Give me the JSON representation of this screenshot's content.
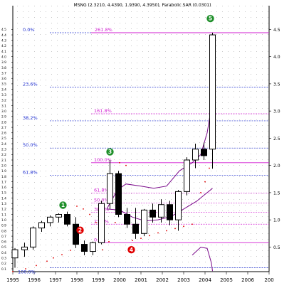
{
  "chart_data": {
    "type": "candlestick",
    "title": "MSNG (2.3210, 4.4390, 1.9390, 4.3950), Parabolic SAR (0.0301)",
    "price_ticks": [
      "0.1",
      "0.2",
      "0.3",
      "0.4",
      "0.5",
      "0.6",
      "0.7",
      "0.8",
      "0.9",
      "1.0",
      "1.1",
      "1.2",
      "1.3",
      "1.4",
      "1.5",
      "1.6",
      "1.7",
      "1.8",
      "1.9",
      "2.0",
      "2.1",
      "2.2",
      "2.3",
      "2.4",
      "2.5",
      "2.6",
      "2.7",
      "2.8",
      "2.9",
      "3.0",
      "3.1",
      "3.2",
      "3.3",
      "3.4",
      "3.5",
      "3.6",
      "3.7",
      "3.8",
      "3.9",
      "4.0",
      "4.1",
      "4.2",
      "4.3",
      "4.4",
      "4.5"
    ],
    "y_ticks_right": [
      "0.5",
      "1.0",
      "1.5",
      "2.0",
      "2.5",
      "3.0",
      "3.5",
      "4.0",
      "4.5"
    ],
    "x_ticks": [
      "1995",
      "1996",
      "1997",
      "1998",
      "1999",
      "2000",
      "2001",
      "2002",
      "2003",
      "2004",
      "2005",
      "2006",
      "200"
    ],
    "ylim": [
      0.1,
      4.6
    ],
    "candles": [
      {
        "x": 1995.1,
        "o": 0.3,
        "h": 0.48,
        "l": 0.12,
        "c": 0.45
      },
      {
        "x": 1995.55,
        "o": 0.45,
        "h": 0.58,
        "l": 0.32,
        "c": 0.5
      },
      {
        "x": 1995.95,
        "o": 0.5,
        "h": 0.88,
        "l": 0.45,
        "c": 0.85
      },
      {
        "x": 1996.35,
        "o": 0.85,
        "h": 0.98,
        "l": 0.78,
        "c": 0.95
      },
      {
        "x": 1996.75,
        "o": 0.95,
        "h": 1.08,
        "l": 0.88,
        "c": 1.05
      },
      {
        "x": 1997.15,
        "o": 1.05,
        "h": 1.12,
        "l": 0.95,
        "c": 1.1
      },
      {
        "x": 1997.55,
        "o": 1.1,
        "h": 1.15,
        "l": 0.88,
        "c": 0.92
      },
      {
        "x": 1997.95,
        "o": 0.92,
        "h": 1.05,
        "l": 0.48,
        "c": 0.55
      },
      {
        "x": 1998.35,
        "o": 0.55,
        "h": 0.62,
        "l": 0.35,
        "c": 0.42
      },
      {
        "x": 1998.75,
        "o": 0.42,
        "h": 0.6,
        "l": 0.35,
        "c": 0.58
      },
      {
        "x": 1999.15,
        "o": 0.58,
        "h": 1.35,
        "l": 0.55,
        "c": 1.3
      },
      {
        "x": 1999.55,
        "o": 1.3,
        "h": 2.1,
        "l": 1.2,
        "c": 1.85
      },
      {
        "x": 1999.95,
        "o": 1.85,
        "h": 1.9,
        "l": 1.05,
        "c": 1.1
      },
      {
        "x": 2000.35,
        "o": 1.1,
        "h": 1.22,
        "l": 0.85,
        "c": 0.92
      },
      {
        "x": 2000.75,
        "o": 0.92,
        "h": 1.22,
        "l": 0.65,
        "c": 0.75
      },
      {
        "x": 2001.15,
        "o": 0.75,
        "h": 1.2,
        "l": 0.7,
        "c": 1.18
      },
      {
        "x": 2001.55,
        "o": 1.18,
        "h": 1.3,
        "l": 0.95,
        "c": 1.05
      },
      {
        "x": 2001.95,
        "o": 1.05,
        "h": 1.38,
        "l": 0.95,
        "c": 1.28
      },
      {
        "x": 2002.35,
        "o": 1.28,
        "h": 1.35,
        "l": 0.9,
        "c": 1.0
      },
      {
        "x": 2002.75,
        "o": 1.0,
        "h": 1.55,
        "l": 0.8,
        "c": 1.52
      },
      {
        "x": 2003.15,
        "o": 1.52,
        "h": 2.15,
        "l": 1.45,
        "c": 2.1
      },
      {
        "x": 2003.55,
        "o": 2.1,
        "h": 2.4,
        "l": 1.95,
        "c": 2.3
      },
      {
        "x": 2003.95,
        "o": 2.3,
        "h": 2.42,
        "l": 2.1,
        "c": 2.18
      },
      {
        "x": 2004.35,
        "o": 2.3,
        "h": 4.44,
        "l": 1.94,
        "c": 4.4
      }
    ],
    "fibonacci_left": [
      {
        "label": "0.0%",
        "value": 4.44
      },
      {
        "label": "23.6%",
        "value": 3.44
      },
      {
        "label": "38.2%",
        "value": 2.82
      },
      {
        "label": "50.0%",
        "value": 2.32
      },
      {
        "label": "61.8%",
        "value": 1.82
      },
      {
        "label": "100.0%",
        "value": 0.12
      }
    ],
    "fibonacci_right": [
      {
        "label": "261.8%",
        "value": 4.44
      },
      {
        "label": "161.8%",
        "value": 2.95
      },
      {
        "label": "100.0%",
        "value": 2.05
      },
      {
        "label": "61.8%",
        "value": 1.49
      },
      {
        "label": "50.0%",
        "value": 1.31
      },
      {
        "label": "38.2%",
        "value": 1.14
      },
      {
        "label": "23.6%",
        "value": 0.92
      },
      {
        "label": "0.0%",
        "value": 0.58
      }
    ],
    "wave_labels": [
      {
        "label": "1",
        "x": 1997.35,
        "y": 1.27,
        "color": "#1f8f2a"
      },
      {
        "label": "2",
        "x": 1998.15,
        "y": 0.81,
        "color": "#e00000"
      },
      {
        "label": "3",
        "x": 1999.55,
        "y": 2.25,
        "color": "#1f8f2a"
      },
      {
        "label": "4",
        "x": 2000.55,
        "y": 0.45,
        "color": "#e00000"
      },
      {
        "label": "5",
        "x": 2004.25,
        "y": 4.7,
        "color": "#1f8f2a"
      }
    ],
    "parabolic_sar": [
      {
        "x": 1995.0,
        "y": 0.05
      },
      {
        "x": 1995.6,
        "y": 0.1
      },
      {
        "x": 1996.1,
        "y": 0.16
      },
      {
        "x": 1996.6,
        "y": 0.24
      },
      {
        "x": 1996.9,
        "y": 0.3
      },
      {
        "x": 1997.3,
        "y": 0.36
      },
      {
        "x": 1997.7,
        "y": 0.44
      },
      {
        "x": 1998.0,
        "y": 1.25
      },
      {
        "x": 1998.3,
        "y": 1.2
      },
      {
        "x": 1998.6,
        "y": 1.1
      },
      {
        "x": 1998.9,
        "y": 0.95
      },
      {
        "x": 1999.2,
        "y": 0.45
      },
      {
        "x": 1999.5,
        "y": 0.6
      },
      {
        "x": 1999.8,
        "y": 0.95
      },
      {
        "x": 2000.0,
        "y": 2.05
      },
      {
        "x": 2000.3,
        "y": 2.0
      },
      {
        "x": 2000.6,
        "y": 0.62
      },
      {
        "x": 2001.0,
        "y": 0.66
      },
      {
        "x": 2001.4,
        "y": 0.71
      },
      {
        "x": 2001.8,
        "y": 0.76
      },
      {
        "x": 2002.2,
        "y": 0.8
      },
      {
        "x": 2002.6,
        "y": 0.84
      },
      {
        "x": 2003.0,
        "y": 0.88
      },
      {
        "x": 2003.4,
        "y": 0.92
      },
      {
        "x": 2003.8,
        "y": 1.5
      },
      {
        "x": 2004.0,
        "y": 1.7
      },
      {
        "x": 2004.2,
        "y": 1.95
      }
    ],
    "channel_upper": [
      {
        "x": 1999.4,
        "y": 1.2
      },
      {
        "x": 1999.9,
        "y": 1.55
      },
      {
        "x": 2000.3,
        "y": 1.66
      },
      {
        "x": 2001.0,
        "y": 1.62
      },
      {
        "x": 2001.6,
        "y": 1.58
      },
      {
        "x": 2002.2,
        "y": 1.62
      },
      {
        "x": 2002.8,
        "y": 1.9
      },
      {
        "x": 2003.4,
        "y": 2.05
      },
      {
        "x": 2003.8,
        "y": 2.2
      },
      {
        "x": 2004.1,
        "y": 2.6
      },
      {
        "x": 2004.35,
        "y": 3.2
      }
    ],
    "channel_lower": [
      {
        "x": 1999.4,
        "y": 1.2
      },
      {
        "x": 2000.0,
        "y": 1.18
      },
      {
        "x": 2000.6,
        "y": 1.05
      },
      {
        "x": 2001.2,
        "y": 0.98
      },
      {
        "x": 2001.8,
        "y": 1.0
      },
      {
        "x": 2002.4,
        "y": 1.06
      },
      {
        "x": 2003.0,
        "y": 1.2
      },
      {
        "x": 2003.6,
        "y": 1.34
      },
      {
        "x": 2004.1,
        "y": 1.5
      },
      {
        "x": 2004.35,
        "y": 1.58
      }
    ],
    "lower_panel_line": [
      {
        "x": 2003.4,
        "y": 0.22
      },
      {
        "x": 2003.8,
        "y": 0.29
      },
      {
        "x": 2004.1,
        "y": 0.28
      },
      {
        "x": 2004.3,
        "y": 0.15
      },
      {
        "x": 2004.35,
        "y": 0.08
      }
    ]
  }
}
